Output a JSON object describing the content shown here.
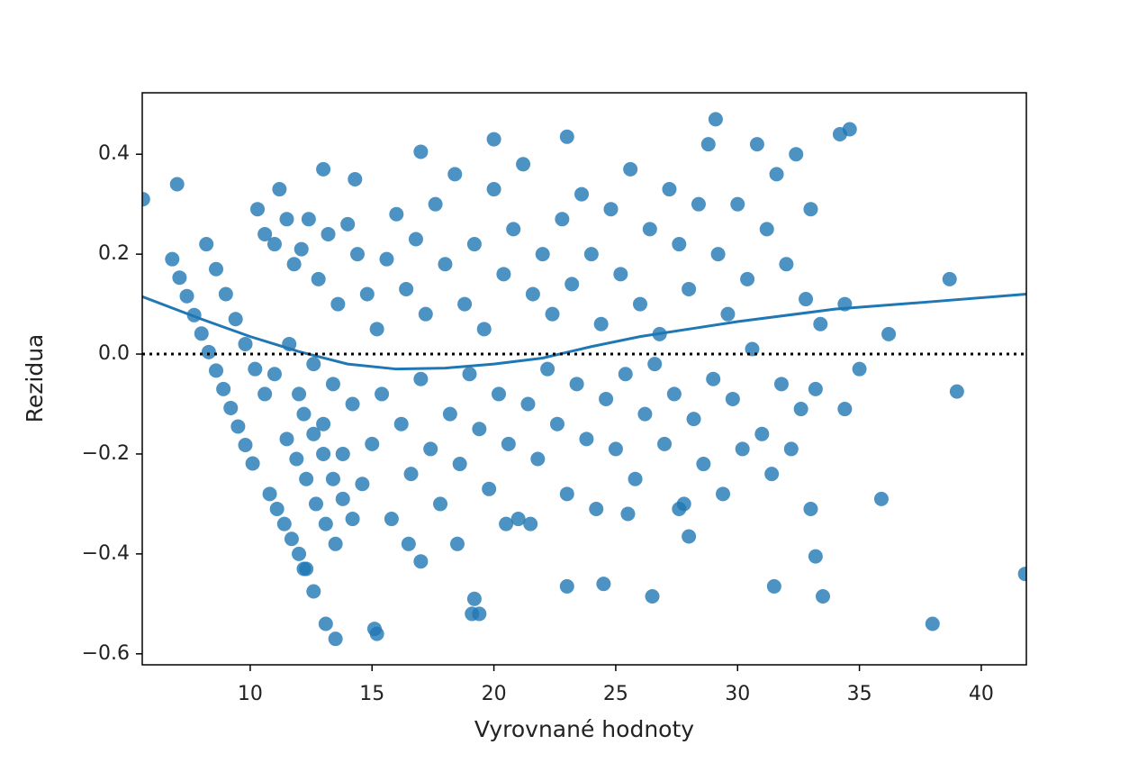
{
  "chart_data": {
    "type": "scatter",
    "xlabel": "Vyrovnané hodnoty",
    "ylabel": "Rezidua",
    "xlim": [
      5.57,
      41.85
    ],
    "ylim": [
      -0.622,
      0.523
    ],
    "xticks": [
      10,
      15,
      20,
      25,
      30,
      35,
      40
    ],
    "yticks": [
      {
        "value": -0.6,
        "label": "−0.6"
      },
      {
        "value": -0.4,
        "label": "−0.4"
      },
      {
        "value": -0.2,
        "label": "−0.2"
      },
      {
        "value": 0,
        "label": "0.0"
      },
      0.2,
      0.4
    ],
    "hline": 0,
    "points": {
      "color": "#1f77b4",
      "x": [
        5.6,
        7,
        41.8,
        38,
        38.7,
        36.2,
        39,
        35.9,
        29.1,
        34.6,
        34.2,
        20,
        23,
        17,
        13,
        14.3,
        13.5,
        15.1,
        15.2,
        13.1,
        19.1,
        19.4,
        19.2,
        23,
        24.5,
        26.5,
        31.5,
        33.5,
        33.2,
        12.6,
        12.2,
        28,
        17,
        6.8,
        7.1,
        7.4,
        7.7,
        8.0,
        8.3,
        8.6,
        8.9,
        9.2,
        9.5,
        9.8,
        10.1,
        8.2,
        8.6,
        9.0,
        9.4,
        9.8,
        10.2,
        10.6,
        10.8,
        11.1,
        11.4,
        11.7,
        12,
        12.3,
        11.5,
        11.9,
        12.3,
        12.7,
        13.1,
        13.5,
        12.2,
        12.6,
        13.0,
        13.4,
        13.8,
        14.2,
        10.3,
        10.6,
        11.0,
        11.2,
        11.5,
        11.8,
        12.1,
        12.4,
        12.8,
        13.2,
        13.6,
        14.0,
        14.4,
        14.8,
        15.2,
        15.6,
        16.0,
        16.4,
        16.8,
        17.2,
        17.6,
        18.0,
        18.4,
        18.8,
        19.2,
        19.6,
        20.0,
        20.4,
        20.8,
        21.2,
        21.6,
        22.0,
        22.4,
        22.8,
        23.2,
        23.6,
        24.0,
        24.4,
        24.8,
        25.2,
        25.6,
        26.0,
        26.4,
        26.8,
        27.2,
        27.6,
        28.0,
        28.4,
        28.8,
        29.2,
        29.6,
        30.0,
        30.4,
        30.8,
        31.2,
        31.6,
        32.0,
        32.4,
        32.8,
        33.0,
        33.4,
        34.4,
        11.0,
        11.6,
        12.0,
        12.6,
        13.0,
        13.4,
        13.8,
        14.2,
        14.6,
        15.0,
        15.4,
        15.8,
        16.2,
        16.6,
        17.0,
        17.4,
        17.8,
        18.2,
        18.6,
        19.0,
        19.4,
        19.8,
        20.2,
        20.6,
        21.0,
        21.4,
        21.8,
        22.2,
        22.6,
        23.0,
        23.4,
        23.8,
        24.2,
        24.6,
        25.0,
        25.4,
        25.8,
        26.2,
        26.6,
        27.0,
        27.4,
        27.8,
        28.2,
        28.6,
        29.0,
        29.4,
        29.8,
        30.2,
        30.6,
        31.0,
        31.4,
        31.8,
        32.2,
        32.6,
        33.0,
        33.2,
        34.4,
        35,
        18.5,
        16.5,
        20.5,
        21.5,
        25.5,
        27.6
      ],
      "y": [
        0.31,
        0.34,
        -0.44,
        -0.54,
        0.15,
        0.04,
        -0.075,
        -0.29,
        0.47,
        0.45,
        0.44,
        0.43,
        0.435,
        0.405,
        0.37,
        0.35,
        -0.57,
        -0.55,
        -0.56,
        -0.54,
        -0.52,
        -0.52,
        -0.49,
        -0.465,
        -0.46,
        -0.485,
        -0.465,
        -0.485,
        -0.405,
        -0.475,
        -0.43,
        -0.365,
        -0.415,
        0.19,
        0.153,
        0.116,
        0.078,
        0.041,
        0.004,
        -0.033,
        -0.07,
        -0.108,
        -0.145,
        -0.182,
        -0.219,
        0.22,
        0.17,
        0.12,
        0.07,
        0.02,
        -0.03,
        -0.08,
        -0.28,
        -0.31,
        -0.34,
        -0.37,
        -0.4,
        -0.43,
        -0.17,
        -0.21,
        -0.25,
        -0.3,
        -0.34,
        -0.38,
        -0.12,
        -0.16,
        -0.2,
        -0.25,
        -0.29,
        -0.33,
        0.29,
        0.24,
        0.22,
        0.33,
        0.27,
        0.18,
        0.21,
        0.27,
        0.15,
        0.24,
        0.1,
        0.26,
        0.2,
        0.12,
        0.05,
        0.19,
        0.28,
        0.13,
        0.23,
        0.08,
        0.3,
        0.18,
        0.36,
        0.1,
        0.22,
        0.05,
        0.33,
        0.16,
        0.25,
        0.38,
        0.12,
        0.2,
        0.08,
        0.27,
        0.14,
        0.32,
        0.2,
        0.06,
        0.29,
        0.16,
        0.37,
        0.1,
        0.25,
        0.04,
        0.33,
        0.22,
        0.13,
        0.3,
        0.42,
        0.2,
        0.08,
        0.3,
        0.15,
        0.42,
        0.25,
        0.36,
        0.18,
        0.4,
        0.11,
        0.29,
        0.06,
        0.1,
        -0.04,
        0.02,
        -0.08,
        -0.02,
        -0.14,
        -0.06,
        -0.2,
        -0.1,
        -0.26,
        -0.18,
        -0.08,
        -0.33,
        -0.14,
        -0.24,
        -0.05,
        -0.19,
        -0.3,
        -0.12,
        -0.22,
        -0.04,
        -0.15,
        -0.27,
        -0.08,
        -0.18,
        -0.33,
        -0.1,
        -0.21,
        -0.03,
        -0.14,
        -0.28,
        -0.06,
        -0.17,
        -0.31,
        -0.09,
        -0.19,
        -0.04,
        -0.25,
        -0.12,
        -0.02,
        -0.18,
        -0.08,
        -0.3,
        -0.13,
        -0.22,
        -0.05,
        -0.28,
        -0.09,
        -0.19,
        0.01,
        -0.16,
        -0.24,
        -0.06,
        -0.19,
        -0.11,
        -0.31,
        -0.07,
        -0.11,
        -0.03,
        -0.38,
        -0.38,
        -0.34,
        -0.34,
        -0.32,
        -0.31
      ]
    },
    "fit": {
      "color": "#1f77b4",
      "x": [
        5.57,
        8,
        10,
        12,
        14,
        16,
        18,
        20,
        22,
        24,
        26,
        28,
        30,
        34,
        38,
        41.85
      ],
      "y": [
        0.115,
        0.07,
        0.035,
        0.005,
        -0.02,
        -0.03,
        -0.028,
        -0.02,
        -0.008,
        0.015,
        0.035,
        0.05,
        0.065,
        0.09,
        0.105,
        0.12
      ]
    }
  }
}
